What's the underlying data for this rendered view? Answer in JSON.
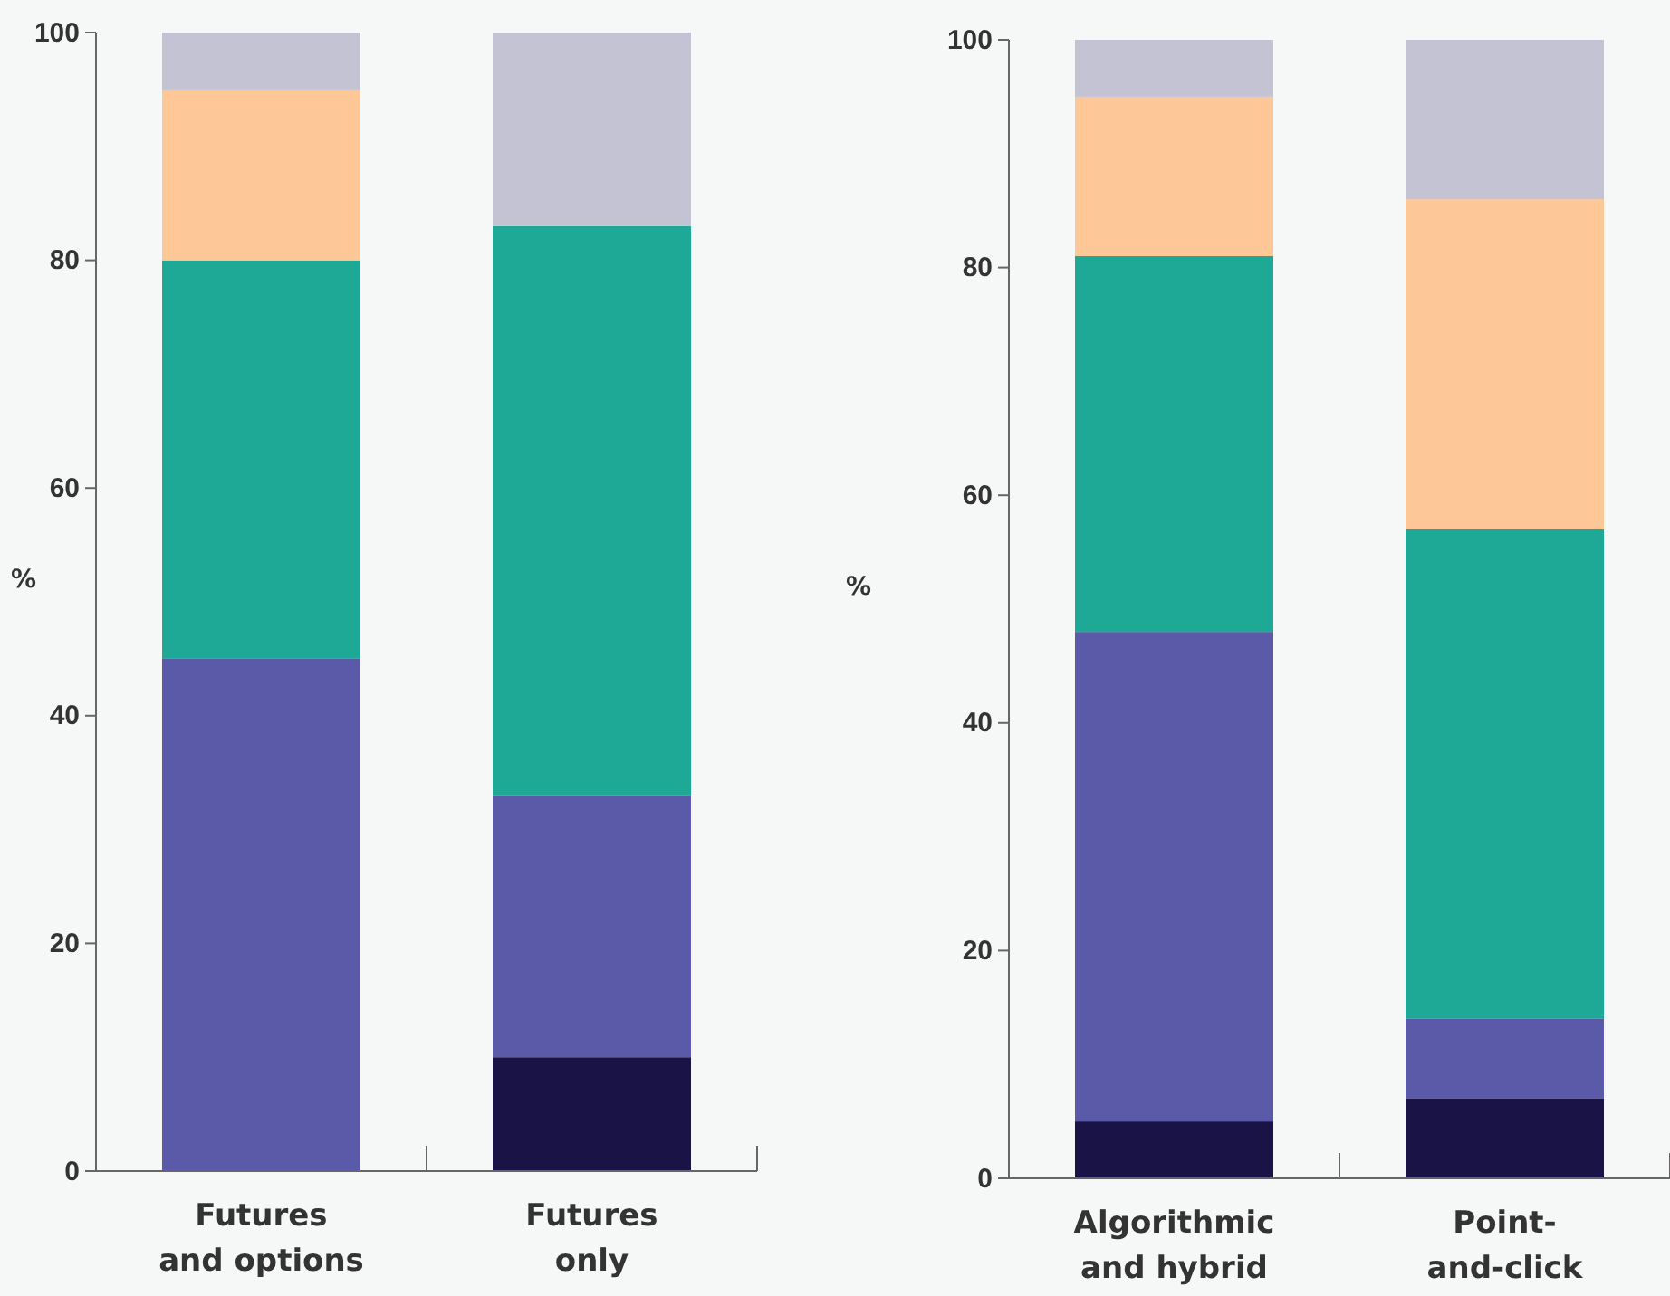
{
  "chart_data": [
    {
      "type": "bar",
      "stacked": true,
      "ylabel": "%",
      "categories": [
        "Futures and options",
        "Futures only"
      ],
      "ylim": [
        0,
        100
      ],
      "yticks": [
        0,
        20,
        40,
        60,
        80,
        100
      ],
      "series": [
        {
          "color": "#1a1446",
          "values": [
            0,
            10
          ]
        },
        {
          "color": "#5a5aa8",
          "values": [
            45,
            23
          ]
        },
        {
          "color": "#1ea896",
          "values": [
            35,
            50
          ]
        },
        {
          "color": "#fdc797",
          "values": [
            15,
            0
          ]
        },
        {
          "color": "#c4c3d4",
          "values": [
            5,
            17
          ]
        }
      ]
    },
    {
      "type": "bar",
      "stacked": true,
      "ylabel": "%",
      "categories": [
        "Algorithmic and hybrid",
        "Point-and-click"
      ],
      "ylim": [
        0,
        100
      ],
      "yticks": [
        0,
        20,
        40,
        60,
        80,
        100
      ],
      "series": [
        {
          "color": "#1a1446",
          "values": [
            5,
            7
          ]
        },
        {
          "color": "#5a5aa8",
          "values": [
            43,
            7
          ]
        },
        {
          "color": "#1ea896",
          "values": [
            33,
            43
          ]
        },
        {
          "color": "#fdc797",
          "values": [
            14,
            29
          ]
        },
        {
          "color": "#c4c3d4",
          "values": [
            5,
            14
          ]
        }
      ]
    }
  ]
}
